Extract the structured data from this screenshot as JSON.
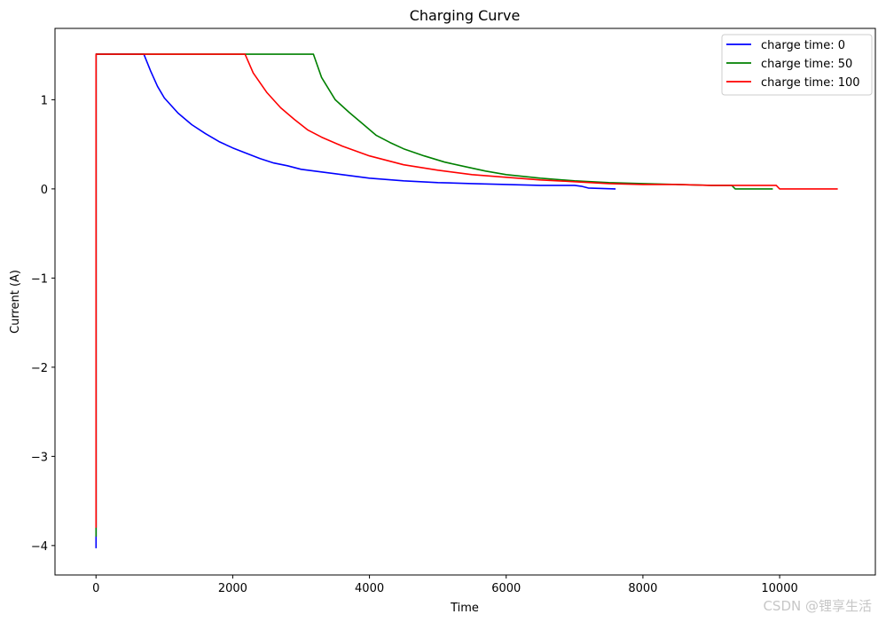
{
  "chart_data": {
    "type": "line",
    "title": "Charging Curve",
    "xlabel": "Time",
    "ylabel": "Current (A)",
    "xlim": [
      -600,
      11400
    ],
    "ylim": [
      -4.33,
      1.8
    ],
    "xticks": [
      0,
      2000,
      4000,
      6000,
      8000,
      10000
    ],
    "xtick_labels": [
      "0",
      "2000",
      "4000",
      "6000",
      "8000",
      "10000"
    ],
    "yticks": [
      -4,
      -3,
      -2,
      -1,
      0,
      1
    ],
    "ytick_labels": [
      "−4",
      "−3",
      "−2",
      "−1",
      "0",
      "1"
    ],
    "grid": false,
    "legend_position": "top-right",
    "series": [
      {
        "name": "charge time: 0",
        "color": "#0000ff",
        "x": [
          0,
          0,
          0,
          0,
          0,
          20,
          700,
          800,
          900,
          1000,
          1200,
          1400,
          1600,
          1800,
          2000,
          2200,
          2400,
          2600,
          2800,
          3000,
          3300,
          3600,
          4000,
          4500,
          5000,
          5500,
          6000,
          6500,
          7000,
          7100,
          7200,
          7600
        ],
        "y": [
          -4.03,
          -3.8,
          -2.5,
          0.5,
          1.51,
          1.51,
          1.51,
          1.32,
          1.15,
          1.02,
          0.85,
          0.72,
          0.62,
          0.53,
          0.46,
          0.4,
          0.34,
          0.29,
          0.26,
          0.22,
          0.19,
          0.16,
          0.12,
          0.09,
          0.07,
          0.06,
          0.05,
          0.04,
          0.04,
          0.03,
          0.01,
          0.0
        ]
      },
      {
        "name": "charge time: 50",
        "color": "#008000",
        "x": [
          0,
          0,
          0,
          0,
          20,
          3180,
          3300,
          3500,
          3700,
          3900,
          4100,
          4300,
          4500,
          4800,
          5100,
          5400,
          5700,
          6000,
          6500,
          7000,
          7500,
          8000,
          8500,
          9000,
          9300,
          9350,
          9900
        ],
        "y": [
          -3.9,
          -2.0,
          0.5,
          1.51,
          1.51,
          1.51,
          1.25,
          1.0,
          0.86,
          0.73,
          0.6,
          0.52,
          0.45,
          0.37,
          0.3,
          0.25,
          0.2,
          0.16,
          0.12,
          0.09,
          0.07,
          0.06,
          0.05,
          0.04,
          0.04,
          0.0,
          0.0
        ]
      },
      {
        "name": "charge time: 100",
        "color": "#ff0000",
        "x": [
          0,
          0,
          0,
          0,
          20,
          2180,
          2300,
          2500,
          2700,
          2900,
          3100,
          3300,
          3600,
          4000,
          4500,
          5000,
          5500,
          6000,
          6500,
          7000,
          7500,
          8000,
          8500,
          9000,
          9500,
          9950,
          10000,
          10850
        ],
        "y": [
          -3.8,
          -2.0,
          0.5,
          1.51,
          1.51,
          1.51,
          1.3,
          1.08,
          0.91,
          0.78,
          0.66,
          0.58,
          0.48,
          0.37,
          0.27,
          0.21,
          0.16,
          0.13,
          0.1,
          0.08,
          0.06,
          0.05,
          0.05,
          0.04,
          0.04,
          0.04,
          0.0,
          0.0
        ]
      }
    ]
  },
  "watermark": "CSDN @锂享生活"
}
